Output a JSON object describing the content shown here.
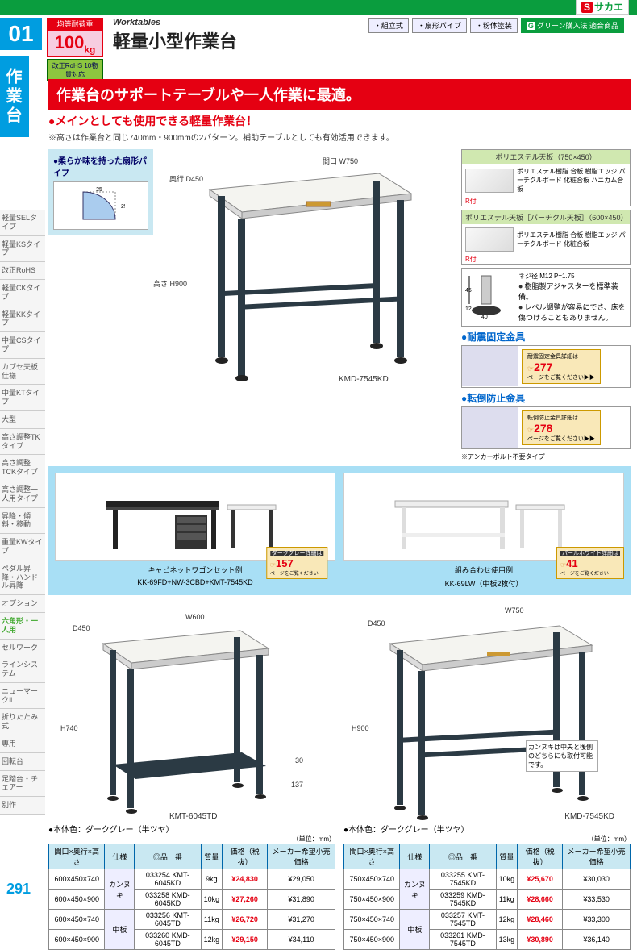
{
  "brand": {
    "name": "サカエ",
    "mark": "S"
  },
  "section": {
    "num": "01",
    "tab": "作業台"
  },
  "load": {
    "label": "均等耐荷重",
    "value": "100",
    "unit": "kg"
  },
  "title": {
    "en": "Worktables",
    "jp": "軽量小型作業台"
  },
  "rohs": "改正RoHS 10物質対応",
  "tags": [
    "・組立式",
    "・扇形パイプ",
    "・粉体塗装"
  ],
  "green_tag": {
    "g": "G",
    "txt": "グリーン購入法 適合商品"
  },
  "banner": "作業台のサポートテーブルや一人作業に最適。",
  "sub_banner": "メインとしても使用できる軽量作業台！",
  "sub_note": "※高さは作業台と同じ740mm・900mmの2パターン。補助テーブルとしても有効活用できます。",
  "shape": {
    "title": "柔らか味を持った扇形パイプ",
    "dim": "25"
  },
  "hero": {
    "d": "奥行 D450",
    "w": "間口 W750",
    "h": "高さ H900",
    "model": "KMD-7545KD",
    "tag": "サカエ"
  },
  "top_panel1": {
    "hdr": "ポリエステル天板（750×450）",
    "r": "R付",
    "layers": "ポリエステル樹脂 合板\n樹脂エッジ パーチクルボード 化粧合板 ハニカム合板"
  },
  "top_panel2": {
    "hdr": "ポリエステル天板［パーチクル天板］（600×450）",
    "r": "R付",
    "layers": "ポリエステル樹脂 合板\n樹脂エッジ パーチクルボード 化粧合板"
  },
  "adjuster": {
    "dims": "45 12 40",
    "screw": "ネジ径 M12 P=1.75",
    "b1": "樹脂製アジャスターを標準装備。",
    "b2": "レベル調整が容易にでき、床を傷つけることもありません。"
  },
  "seismic": {
    "h": "耐震固定金具",
    "top": "耐震固定金具詳細は",
    "page": "277",
    "bot": "ページをご覧ください▶▶"
  },
  "tipover": {
    "h": "転倒防止金具",
    "top": "転倒防止金具詳細は",
    "page": "278",
    "bot": "ページをご覧ください▶▶",
    "note": "※アンカーボルト不要タイプ"
  },
  "examples": {
    "cap1": "キャビネットワゴンセット例",
    "sub1": "KK-69FD+NW-3CBD+KMT-7545KD",
    "cap2": "組み合わせ使用例",
    "sub2": "KK-69LW（中板2枚付）",
    "ref1": {
      "tag": "ダークグレー詳細は",
      "page": "157",
      "bot": "ページをご覧ください"
    },
    "ref2": {
      "tag": "パールホワイト詳細は",
      "page": "41",
      "bot": "ページをご覧ください"
    }
  },
  "categories": [
    "軽量SELタイプ",
    "軽量KSタイプ",
    "改正RoHS",
    "軽量CKタイプ",
    "軽量KKタイプ",
    "中量CSタイプ",
    "カブセ天板仕様",
    "中量KTタイプ",
    "大型",
    "高さ調整TK　タイプ",
    "高さ調整TCKタイプ",
    "高さ調整一人用タイプ",
    "昇降・傾斜・移動",
    "重量KWタイプ",
    "ペダル昇降・ハンドル昇降",
    "オプション",
    "六角形・一人用",
    "セルワーク",
    "ラインシステム",
    "ニューマークⅡ",
    "折りたたみ式",
    "専用",
    "回転台",
    "足踏台・チェアー",
    "別作"
  ],
  "cat_active_index": 16,
  "prod_left": {
    "dims": {
      "d": "D450",
      "w": "W600",
      "h": "H740",
      "shelf_h": "30",
      "shelf_gap": "137"
    },
    "model_lbl": "KMT-6045TD",
    "body_color": "本体色：ダークグレー（半ツヤ）",
    "unit": "（単位：mm）"
  },
  "prod_right": {
    "dims": {
      "d": "D450",
      "w": "W750",
      "h": "H900"
    },
    "note": "カンヌキは中央と後側のどちらにも取付可能です。",
    "model_lbl": "KMD-7545KD",
    "body_color": "本体色：ダークグレー（半ツヤ）",
    "unit": "（単位：mm）"
  },
  "table_headers": [
    "間口×奥行×高さ",
    "仕様",
    "◎品　番",
    "質量",
    "価格（税抜）",
    "メーカー希望小売価格"
  ],
  "table_left": {
    "rows": [
      {
        "size": "600×450×740",
        "spec": "カンヌキ",
        "code": "033254",
        "model": "KMT-6045KD",
        "wt": "9kg",
        "price": "¥24,830",
        "msrp": "¥29,050"
      },
      {
        "size": "600×450×900",
        "spec": "",
        "code": "033258",
        "model": "KMD-6045KD",
        "wt": "10kg",
        "price": "¥27,260",
        "msrp": "¥31,890"
      },
      {
        "size": "600×450×740",
        "spec": "中板",
        "code": "033256",
        "model": "KMT-6045TD",
        "wt": "11kg",
        "price": "¥26,720",
        "msrp": "¥31,270"
      },
      {
        "size": "600×450×900",
        "spec": "",
        "code": "033260",
        "model": "KMD-6045TD",
        "wt": "12kg",
        "price": "¥29,150",
        "msrp": "¥34,110"
      }
    ]
  },
  "table_right": {
    "rows": [
      {
        "size": "750×450×740",
        "spec": "カンヌキ",
        "code": "033255",
        "model": "KMT-7545KD",
        "wt": "10kg",
        "price": "¥25,670",
        "msrp": "¥30,030"
      },
      {
        "size": "750×450×900",
        "spec": "",
        "code": "033259",
        "model": "KMD-7545KD",
        "wt": "11kg",
        "price": "¥28,660",
        "msrp": "¥33,530"
      },
      {
        "size": "750×450×740",
        "spec": "中板",
        "code": "033257",
        "model": "KMT-7545TD",
        "wt": "12kg",
        "price": "¥28,460",
        "msrp": "¥33,300"
      },
      {
        "size": "750×450×900",
        "spec": "",
        "code": "033261",
        "model": "KMD-7545TD",
        "wt": "13kg",
        "price": "¥30,890",
        "msrp": "¥36,140"
      }
    ]
  },
  "page_num": "291",
  "colors": {
    "blue": "#009de0",
    "red": "#e50012",
    "green": "#0a9d3e",
    "lightblue": "#c9e8f2",
    "cream": "#f9e8b8"
  }
}
